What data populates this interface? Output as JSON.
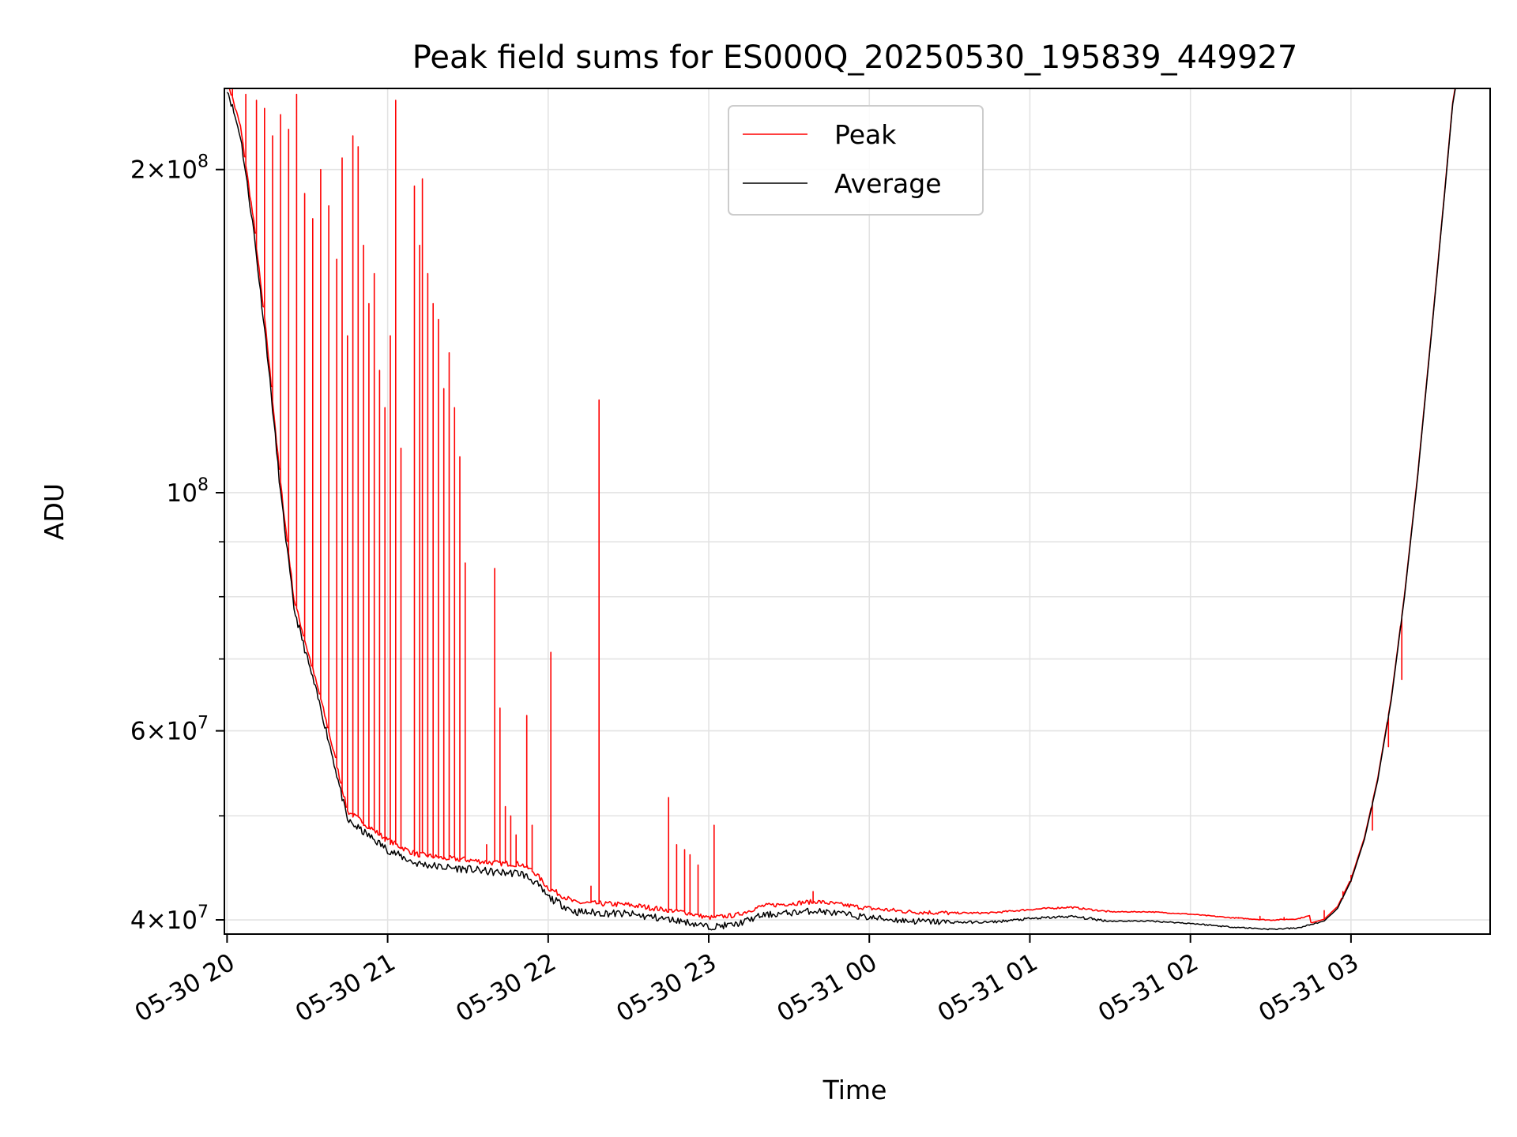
{
  "chart_data": {
    "type": "line",
    "title": "Peak field sums for ES000Q_20250530_195839_449927",
    "xlabel": "Time",
    "ylabel": "ADU",
    "y_scale": "log",
    "ylim": [
      38800000,
      238000000
    ],
    "xlim": [
      "2025-05-30 19:59",
      "2025-05-31 03:52"
    ],
    "x_ticks": [
      "05-30 20",
      "05-30 21",
      "05-30 22",
      "05-30 23",
      "05-31 00",
      "05-31 01",
      "05-31 02",
      "05-31 03"
    ],
    "y_ticks": [
      {
        "value": 40000000,
        "mantissa": "4",
        "exponent": "7"
      },
      {
        "value": 60000000,
        "mantissa": "6",
        "exponent": "7"
      },
      {
        "value": 100000000,
        "mantissa": "",
        "exponent": "8"
      },
      {
        "value": 200000000,
        "mantissa": "2",
        "exponent": "8"
      }
    ],
    "grid": true,
    "legend": {
      "position": "top-center"
    },
    "series": [
      {
        "name": "Peak",
        "color": "#ff0000",
        "baseline_offset": 0.02,
        "spikes": [
          [
            "2025-05-30 20:02",
            238000000
          ],
          [
            "2025-05-30 20:07",
            235000000
          ],
          [
            "2025-05-30 20:11",
            232000000
          ],
          [
            "2025-05-30 20:14",
            228000000
          ],
          [
            "2025-05-30 20:17",
            215000000
          ],
          [
            "2025-05-30 20:20",
            225000000
          ],
          [
            "2025-05-30 20:23",
            218000000
          ],
          [
            "2025-05-30 20:26",
            235000000
          ],
          [
            "2025-05-30 20:29",
            190000000
          ],
          [
            "2025-05-30 20:32",
            180000000
          ],
          [
            "2025-05-30 20:35",
            200000000
          ],
          [
            "2025-05-30 20:38",
            185000000
          ],
          [
            "2025-05-30 20:41",
            165000000
          ],
          [
            "2025-05-30 20:43",
            205000000
          ],
          [
            "2025-05-30 20:45",
            140000000
          ],
          [
            "2025-05-30 20:47",
            215000000
          ],
          [
            "2025-05-30 20:49",
            210000000
          ],
          [
            "2025-05-30 20:51",
            170000000
          ],
          [
            "2025-05-30 20:53",
            150000000
          ],
          [
            "2025-05-30 20:55",
            160000000
          ],
          [
            "2025-05-30 20:57",
            130000000
          ],
          [
            "2025-05-30 20:59",
            120000000
          ],
          [
            "2025-05-30 21:01",
            140000000
          ],
          [
            "2025-05-30 21:03",
            232000000
          ],
          [
            "2025-05-30 21:05",
            110000000
          ],
          [
            "2025-05-30 21:10",
            193000000
          ],
          [
            "2025-05-30 21:12",
            170000000
          ],
          [
            "2025-05-30 21:13",
            196000000
          ],
          [
            "2025-05-30 21:15",
            160000000
          ],
          [
            "2025-05-30 21:17",
            150000000
          ],
          [
            "2025-05-30 21:19",
            145000000
          ],
          [
            "2025-05-30 21:21",
            125000000
          ],
          [
            "2025-05-30 21:23",
            135000000
          ],
          [
            "2025-05-30 21:25",
            120000000
          ],
          [
            "2025-05-30 21:27",
            108000000
          ],
          [
            "2025-05-30 21:29",
            86000000
          ],
          [
            "2025-05-30 21:37",
            47000000
          ],
          [
            "2025-05-30 21:40",
            85000000
          ],
          [
            "2025-05-30 21:42",
            63000000
          ],
          [
            "2025-05-30 21:44",
            51000000
          ],
          [
            "2025-05-30 21:46",
            50000000
          ],
          [
            "2025-05-30 21:48",
            48000000
          ],
          [
            "2025-05-30 21:52",
            62000000
          ],
          [
            "2025-05-30 21:54",
            49000000
          ],
          [
            "2025-05-30 22:01",
            71000000
          ],
          [
            "2025-05-30 22:16",
            43000000
          ],
          [
            "2025-05-30 22:19",
            122000000
          ],
          [
            "2025-05-30 22:45",
            52000000
          ],
          [
            "2025-05-30 22:48",
            47000000
          ],
          [
            "2025-05-30 22:51",
            46500000
          ],
          [
            "2025-05-30 22:53",
            46000000
          ],
          [
            "2025-05-30 22:56",
            45000000
          ],
          [
            "2025-05-30 23:02",
            49000000
          ],
          [
            "2025-05-30 23:39",
            42500000
          ],
          [
            "2025-05-31 02:00",
            40500000
          ],
          [
            "2025-05-31 02:10",
            40300000
          ],
          [
            "2025-05-31 02:18",
            40200000
          ],
          [
            "2025-05-31 02:26",
            40300000
          ],
          [
            "2025-05-31 02:35",
            40200000
          ],
          [
            "2025-05-31 02:50",
            40800000
          ],
          [
            "2025-05-31 02:57",
            42500000
          ],
          [
            "2025-05-31 03:00",
            44000000
          ],
          [
            "2025-05-31 03:08",
            48500000
          ],
          [
            "2025-05-31 03:14",
            58000000
          ],
          [
            "2025-05-31 03:19",
            67000000
          ]
        ]
      },
      {
        "name": "Average",
        "color": "#000000",
        "curve": [
          [
            "2025-05-30 20:00",
            238000000
          ],
          [
            "2025-05-30 20:05",
            215000000
          ],
          [
            "2025-05-30 20:10",
            175000000
          ],
          [
            "2025-05-30 20:15",
            135000000
          ],
          [
            "2025-05-30 20:20",
            100000000
          ],
          [
            "2025-05-30 20:25",
            78000000
          ],
          [
            "2025-05-30 20:30",
            70000000
          ],
          [
            "2025-05-30 20:35",
            63000000
          ],
          [
            "2025-05-30 20:40",
            56000000
          ],
          [
            "2025-05-30 20:45",
            49500000
          ],
          [
            "2025-05-30 20:50",
            48500000
          ],
          [
            "2025-05-30 20:55",
            47500000
          ],
          [
            "2025-05-30 21:00",
            46500000
          ],
          [
            "2025-05-30 21:10",
            45200000
          ],
          [
            "2025-05-30 21:20",
            44800000
          ],
          [
            "2025-05-30 21:30",
            44600000
          ],
          [
            "2025-05-30 21:40",
            44300000
          ],
          [
            "2025-05-30 21:50",
            44200000
          ],
          [
            "2025-05-30 21:55",
            43400000
          ],
          [
            "2025-05-30 22:00",
            42000000
          ],
          [
            "2025-05-30 22:10",
            40700000
          ],
          [
            "2025-05-30 22:20",
            40600000
          ],
          [
            "2025-05-30 22:30",
            40500000
          ],
          [
            "2025-05-30 22:40",
            40200000
          ],
          [
            "2025-05-30 22:50",
            39900000
          ],
          [
            "2025-05-30 23:00",
            39400000
          ],
          [
            "2025-05-30 23:10",
            39600000
          ],
          [
            "2025-05-30 23:20",
            40400000
          ],
          [
            "2025-05-30 23:30",
            40600000
          ],
          [
            "2025-05-30 23:40",
            40800000
          ],
          [
            "2025-05-30 23:50",
            40500000
          ],
          [
            "2025-05-31 00:00",
            40200000
          ],
          [
            "2025-05-31 00:15",
            39900000
          ],
          [
            "2025-05-31 00:30",
            39800000
          ],
          [
            "2025-05-31 00:45",
            39800000
          ],
          [
            "2025-05-31 01:00",
            40100000
          ],
          [
            "2025-05-31 01:15",
            40300000
          ],
          [
            "2025-05-31 01:30",
            39900000
          ],
          [
            "2025-05-31 01:45",
            39900000
          ],
          [
            "2025-05-31 02:00",
            39700000
          ],
          [
            "2025-05-31 02:15",
            39400000
          ],
          [
            "2025-05-31 02:30",
            39200000
          ],
          [
            "2025-05-31 02:40",
            39300000
          ],
          [
            "2025-05-31 02:50",
            39900000
          ],
          [
            "2025-05-31 02:55",
            41000000
          ],
          [
            "2025-05-31 03:00",
            43500000
          ],
          [
            "2025-05-31 03:05",
            47500000
          ],
          [
            "2025-05-31 03:10",
            54000000
          ],
          [
            "2025-05-31 03:15",
            64000000
          ],
          [
            "2025-05-31 03:20",
            80000000
          ],
          [
            "2025-05-31 03:25",
            104000000
          ],
          [
            "2025-05-31 03:30",
            140000000
          ],
          [
            "2025-05-31 03:35",
            190000000
          ],
          [
            "2025-05-31 03:38",
            230000000
          ],
          [
            "2025-05-31 03:39",
            238000000
          ]
        ]
      }
    ]
  }
}
